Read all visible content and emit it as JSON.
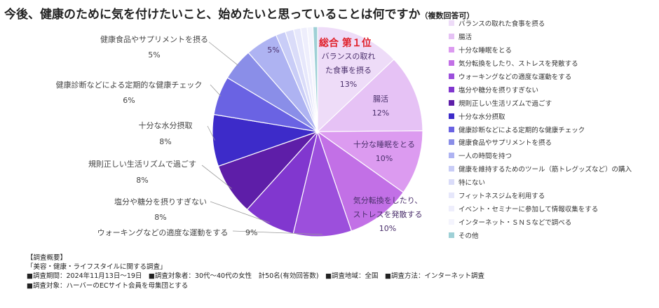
{
  "title": "今後、健康のために気を付けたいこと、始めたいと思っていることは何ですか",
  "title_note": "（複数回答可）",
  "top_badge": "総合 第１位",
  "chart_data": {
    "type": "pie",
    "title": "今後、健康のために気を付けたいこと、始めたいと思っていることは何ですか（複数回答可）",
    "unit": "%",
    "slices": [
      {
        "label": "バランスの取れた食事を摂る",
        "display": [
          "バランスの取れ",
          "た食事を摂る"
        ],
        "value": 13,
        "color": "#eedcf8"
      },
      {
        "label": "腸活",
        "display": [
          "腸活"
        ],
        "value": 12,
        "color": "#e6c2f5"
      },
      {
        "label": "十分な睡眠をとる",
        "display": [
          "十分な睡眠をとる"
        ],
        "value": 10,
        "color": "#dc9bf0"
      },
      {
        "label": "気分転換をしたり、ストレスを発散する",
        "display": [
          "気分転換をしたり、",
          "ストレスを発散する"
        ],
        "value": 10,
        "color": "#c270e6"
      },
      {
        "label": "ウォーキングなどの適度な運動をする",
        "display": [
          "ウォーキングなどの適度な運動をする"
        ],
        "value": 9,
        "color": "#9c4fdc"
      },
      {
        "label": "塩分や糖分を摂りすぎない",
        "display": [
          "塩分や糖分を摂りすぎない"
        ],
        "value": 8,
        "color": "#8137cf"
      },
      {
        "label": "規則正しい生活リズムで過ごす",
        "display": [
          "規則正しい生活リズムで過ごす"
        ],
        "value": 8,
        "color": "#5e1ea8"
      },
      {
        "label": "十分な水分摂取",
        "display": [
          "十分な水分摂取"
        ],
        "value": 8,
        "color": "#3d2bc9"
      },
      {
        "label": "健康診断などによる定期的な健康チェック",
        "display": [
          "健康診断などによる定期的な健康チェック"
        ],
        "value": 6,
        "color": "#6a63e3"
      },
      {
        "label": "健康食品やサプリメントを摂る",
        "display": [
          "健康食品やサプリメントを摂る"
        ],
        "value": 5,
        "color": "#8a8ee8"
      },
      {
        "label": "一人の時間を持つ",
        "display": [],
        "value": 5,
        "color": "#aeb3f2"
      },
      {
        "label": "健康を維持するためのツール（筋トレグッズなど）の購入",
        "display": [],
        "value": 1.5,
        "color": "#c9cdf7"
      },
      {
        "label": "特にない",
        "display": [],
        "value": 1.3,
        "color": "#dadcf9"
      },
      {
        "label": "フィットネスジムを利用する",
        "display": [],
        "value": 1.1,
        "color": "#e6e7fb"
      },
      {
        "label": "イベント・セミナーに参加して情報収集をする",
        "display": [],
        "value": 1,
        "color": "#eeeefc"
      },
      {
        "label": "インターネット・ＳＮＳなどで調べる",
        "display": [],
        "value": 0.9,
        "color": "#f4f4fd"
      },
      {
        "label": "その他",
        "display": [],
        "value": 0.7,
        "color": "#9ed0d6"
      }
    ]
  },
  "survey": {
    "heading": "【調査概要】",
    "name": "「美容・健康・ライフスタイルに関する調査」",
    "line1": "■調査期間：2024年11月13日～19日　■調査対象者：30代～40代の女性　計50名(有効回答数)　■調査地域：全国　■調査方法：インターネット調査",
    "line2": "■調査対象：ハーバーのECサイト会員を母集団とする"
  }
}
